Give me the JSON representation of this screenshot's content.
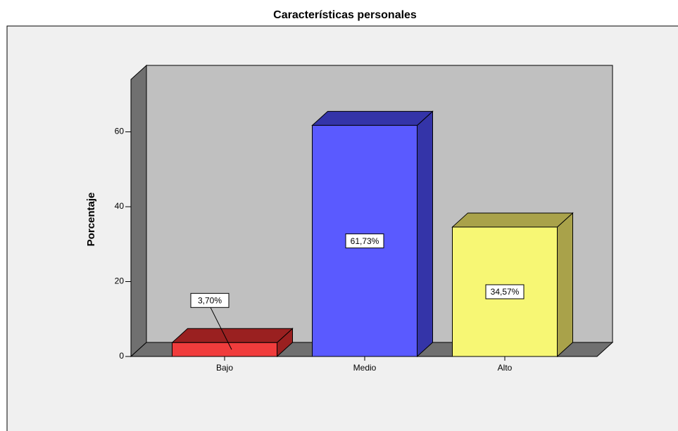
{
  "chart_data": {
    "type": "bar3d",
    "title": "Características personales",
    "y_label": "Porcentaje",
    "categories": [
      "Bajo",
      "Medio",
      "Alto"
    ],
    "values": [
      3.7,
      61.73,
      34.57
    ],
    "value_labels": [
      "3,70%",
      "61,73%",
      "34,57%"
    ],
    "colors": [
      "#f03c3c",
      "#5a5aff",
      "#f7f774"
    ],
    "side_colors": [
      "#9a2020",
      "#3434a8",
      "#a9a24a"
    ],
    "ylim": [
      0,
      74
    ],
    "yticks": [
      0,
      20,
      40,
      60
    ]
  }
}
